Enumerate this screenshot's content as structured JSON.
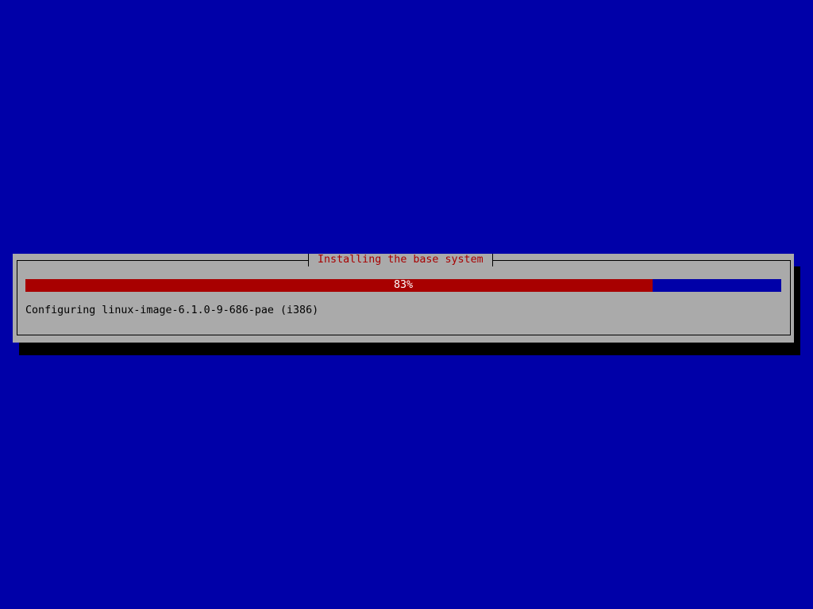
{
  "dialog": {
    "title": "Installing the base system",
    "progress": {
      "percent": 83,
      "label": "83%"
    },
    "status": "Configuring linux-image-6.1.0-9-686-pae (i386)"
  },
  "colors": {
    "background": "#0000a8",
    "dialog": "#aaaaaa",
    "accent": "#a80000"
  }
}
